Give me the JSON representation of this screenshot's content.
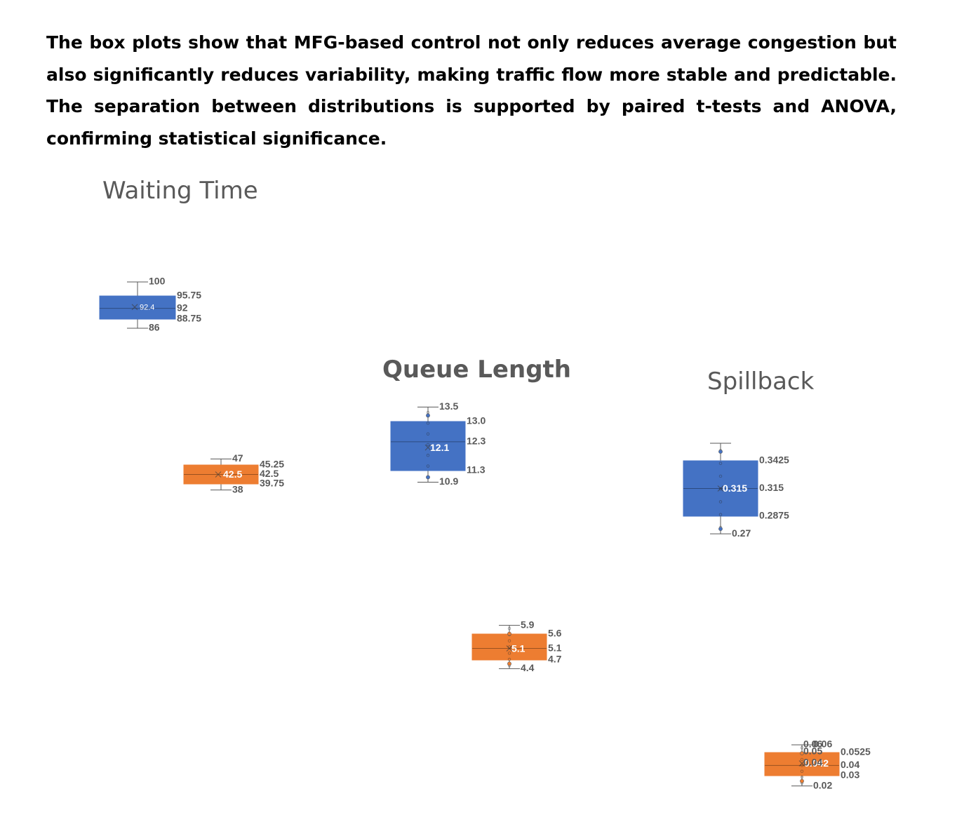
{
  "paragraph": "The box plots show that MFG-based control not only reduces average congestion but also significantly reduces variability, making traffic flow more stable and predictable. The separation between distributions is supported by paired t-tests and ANOVA, confirming statistical significance.",
  "colors": {
    "baseline": "#4472C4",
    "mfg": "#ED7D31",
    "label": "#595959"
  },
  "chart_data": [
    {
      "type": "box",
      "title": "Waiting Time",
      "boxes": [
        {
          "color": "#4472C4",
          "mean_label": "92.4",
          "stats": {
            "max": 100,
            "q3": 95.75,
            "median": 92,
            "q1": 88.75,
            "min": 86,
            "mean": 92.4
          },
          "labels": {
            "max": "100",
            "q3": "95.75",
            "median": "92",
            "q1": "88.75",
            "min": "86"
          }
        },
        {
          "color": "#ED7D31",
          "mean_label": "42.5",
          "stats": {
            "max": 47,
            "q3": 45.25,
            "median": 42.5,
            "q1": 39.75,
            "min": 38,
            "mean": 42.5
          },
          "labels": {
            "max": "47",
            "q3": "45.25",
            "median": "42.5",
            "q1": "39.75",
            "min": "38"
          }
        }
      ]
    },
    {
      "type": "box",
      "title": "Queue Length",
      "boxes": [
        {
          "color": "#4472C4",
          "mean_label": "12.1",
          "stats": {
            "max": 13.5,
            "q3": 13.0,
            "median": 12.3,
            "q1": 11.3,
            "min": 10.9,
            "mean": 12.1
          },
          "labels": {
            "max": "13.5",
            "q3": "13.0",
            "median": "12.3",
            "q1": "11.3",
            "min": "10.9"
          }
        },
        {
          "color": "#ED7D31",
          "mean_label": "5.1",
          "stats": {
            "max": 5.9,
            "q3": 5.6,
            "median": 5.1,
            "q1": 4.7,
            "min": 4.4,
            "mean": 5.1
          },
          "labels": {
            "max": "5.9",
            "q3": "5.6",
            "median": "5.1",
            "q1": "4.7",
            "min": "4.4"
          }
        }
      ]
    },
    {
      "type": "box",
      "title": "Spillback",
      "boxes": [
        {
          "color": "#4472C4",
          "mean_label": "0.315",
          "stats": {
            "q3": 0.3425,
            "median": 0.315,
            "q1": 0.2875,
            "min": 0.27,
            "mean": 0.315
          },
          "labels": {
            "q3": "0.3425",
            "median": "0.315",
            "q1": "0.2875",
            "min": "0.27"
          }
        },
        {
          "color": "#ED7D31",
          "mean_label": "0.042",
          "stats": {
            "max": 0.06,
            "q3": 0.0525,
            "median": 0.04,
            "q1": 0.03,
            "min": 0.02,
            "mean": 0.042
          },
          "labels": {
            "max": "0.06",
            "q3": "0.0525",
            "median": "0.04",
            "q1": "0.03",
            "min": "0.02"
          },
          "extra_labels": [
            "0.06",
            "0.05",
            "0.04"
          ]
        }
      ]
    }
  ]
}
